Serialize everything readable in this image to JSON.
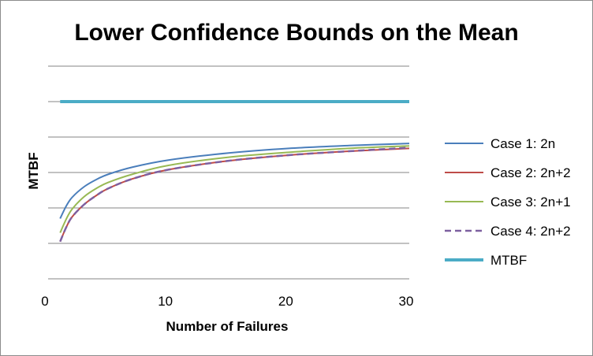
{
  "chart_data": {
    "type": "line",
    "title": "Lower Confidence Bounds on the Mean",
    "xlabel": "Number of Failures",
    "ylabel": "MTBF",
    "xlim": [
      0,
      30
    ],
    "x_ticks": [
      0,
      10,
      20,
      30
    ],
    "ylim": [
      0,
      6
    ],
    "y_tick_labels_shown": false,
    "grid": "horizontal",
    "legend_position": "right",
    "series": [
      {
        "name": "Case 1: 2n",
        "color": "#4a7ebb",
        "dash": false,
        "x": [
          1,
          1.5,
          2,
          3,
          4,
          5,
          7,
          10,
          15,
          20,
          25,
          30
        ],
        "y": [
          1.7,
          2.05,
          2.3,
          2.6,
          2.8,
          2.95,
          3.15,
          3.35,
          3.55,
          3.68,
          3.76,
          3.82
        ]
      },
      {
        "name": "Case 2: 2n+2",
        "color": "#be4b48",
        "dash": false,
        "x": [
          1,
          1.5,
          2,
          3,
          4,
          5,
          7,
          10,
          15,
          20,
          25,
          30
        ],
        "y": [
          1.05,
          1.45,
          1.75,
          2.1,
          2.35,
          2.55,
          2.82,
          3.08,
          3.33,
          3.49,
          3.6,
          3.68
        ]
      },
      {
        "name": "Case 3: 2n+1",
        "color": "#98b954",
        "dash": false,
        "x": [
          1,
          1.5,
          2,
          3,
          4,
          5,
          7,
          10,
          15,
          20,
          25,
          30
        ],
        "y": [
          1.3,
          1.68,
          1.97,
          2.32,
          2.55,
          2.72,
          2.95,
          3.2,
          3.43,
          3.57,
          3.68,
          3.75
        ]
      },
      {
        "name": "Case 4: 2n+2",
        "color": "#7d60a0",
        "dash": true,
        "x": [
          1,
          1.5,
          2,
          3,
          4,
          5,
          7,
          10,
          15,
          20,
          25,
          30
        ],
        "y": [
          1.05,
          1.45,
          1.75,
          2.1,
          2.35,
          2.55,
          2.82,
          3.08,
          3.33,
          3.49,
          3.6,
          3.7
        ]
      },
      {
        "name": "MTBF",
        "color": "#4bacc6",
        "dash": false,
        "thick": true,
        "x": [
          1,
          30
        ],
        "y": [
          5,
          5
        ]
      }
    ]
  }
}
